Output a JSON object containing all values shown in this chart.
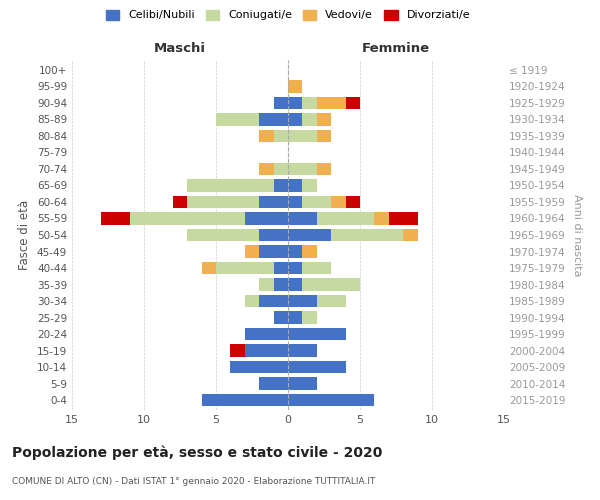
{
  "age_groups": [
    "100+",
    "95-99",
    "90-94",
    "85-89",
    "80-84",
    "75-79",
    "70-74",
    "65-69",
    "60-64",
    "55-59",
    "50-54",
    "45-49",
    "40-44",
    "35-39",
    "30-34",
    "25-29",
    "20-24",
    "15-19",
    "10-14",
    "5-9",
    "0-4"
  ],
  "birth_years": [
    "≤ 1919",
    "1920-1924",
    "1925-1929",
    "1930-1934",
    "1935-1939",
    "1940-1944",
    "1945-1949",
    "1950-1954",
    "1955-1959",
    "1960-1964",
    "1965-1969",
    "1970-1974",
    "1975-1979",
    "1980-1984",
    "1985-1989",
    "1990-1994",
    "1995-1999",
    "2000-2004",
    "2005-2009",
    "2010-2014",
    "2015-2019"
  ],
  "males": {
    "celibi": [
      0,
      0,
      1,
      2,
      0,
      0,
      0,
      1,
      2,
      3,
      2,
      2,
      1,
      1,
      2,
      1,
      3,
      3,
      4,
      2,
      6
    ],
    "coniugati": [
      0,
      0,
      0,
      3,
      1,
      0,
      1,
      6,
      5,
      8,
      5,
      0,
      4,
      1,
      1,
      0,
      0,
      0,
      0,
      0,
      0
    ],
    "vedovi": [
      0,
      0,
      0,
      0,
      1,
      0,
      1,
      0,
      0,
      0,
      0,
      1,
      1,
      0,
      0,
      0,
      0,
      0,
      0,
      0,
      0
    ],
    "divorziati": [
      0,
      0,
      0,
      0,
      0,
      0,
      0,
      0,
      1,
      2,
      0,
      0,
      0,
      0,
      0,
      0,
      0,
      1,
      0,
      0,
      0
    ]
  },
  "females": {
    "nubili": [
      0,
      0,
      1,
      1,
      0,
      0,
      0,
      1,
      1,
      2,
      3,
      1,
      1,
      1,
      2,
      1,
      4,
      2,
      4,
      2,
      6
    ],
    "coniugate": [
      0,
      0,
      1,
      1,
      2,
      0,
      2,
      1,
      2,
      4,
      5,
      0,
      2,
      4,
      2,
      1,
      0,
      0,
      0,
      0,
      0
    ],
    "vedove": [
      0,
      1,
      2,
      1,
      1,
      0,
      1,
      0,
      1,
      1,
      1,
      1,
      0,
      0,
      0,
      0,
      0,
      0,
      0,
      0,
      0
    ],
    "divorziate": [
      0,
      0,
      1,
      0,
      0,
      0,
      0,
      0,
      1,
      2,
      0,
      0,
      0,
      0,
      0,
      0,
      0,
      0,
      0,
      0,
      0
    ]
  },
  "colors": {
    "celibi_nubili": "#4472c4",
    "coniugati_e": "#c5d9a0",
    "vedovi_e": "#f0b050",
    "divorziati_e": "#cc0000"
  },
  "title": "Popolazione per età, sesso e stato civile - 2020",
  "subtitle": "COMUNE DI ALTO (CN) - Dati ISTAT 1° gennaio 2020 - Elaborazione TUTTITALIA.IT",
  "xlabel_left": "Maschi",
  "xlabel_right": "Femmine",
  "ylabel_left": "Fasce di età",
  "ylabel_right": "Anni di nascita",
  "xlim": 15,
  "legend_labels": [
    "Celibi/Nubili",
    "Coniugati/e",
    "Vedovi/e",
    "Divorziati/e"
  ],
  "background_color": "#ffffff",
  "grid_color": "#cccccc"
}
